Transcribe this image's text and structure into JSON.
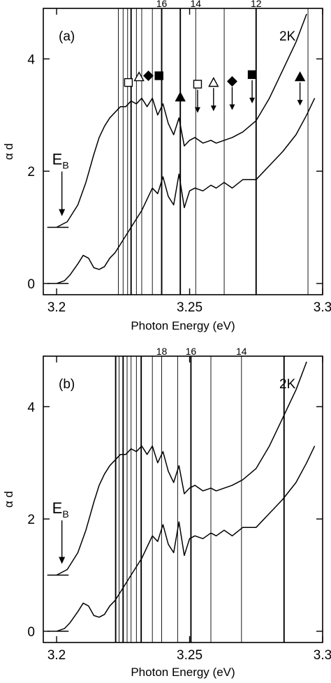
{
  "chart_data": [
    {
      "type": "line",
      "panel_label": "(a)",
      "temperature": "2K",
      "xlabel": "Photon Energy (eV)",
      "ylabel": "α d",
      "xlim": [
        3.195,
        3.3
      ],
      "ylim": [
        -0.2,
        4.9
      ],
      "x_ticks": [
        "3.2",
        "3.25",
        "3.3"
      ],
      "x_tick_values": [
        3.2,
        3.25,
        3.3
      ],
      "y_ticks": [
        "0",
        "2",
        "4"
      ],
      "y_tick_values": [
        0,
        2,
        4
      ],
      "eb_label": "E",
      "eb_subscript": "B",
      "eb_arrow_x": 3.202,
      "eb_arrow_from": 2.02,
      "eb_arrow_to": 1.2,
      "top_labels": [
        {
          "text": "16",
          "x": 3.2395
        },
        {
          "text": "14",
          "x": 3.2523
        },
        {
          "text": "12",
          "x": 3.275
        }
      ],
      "vertical_lines": [
        {
          "x": 3.2232,
          "weight": "thin"
        },
        {
          "x": 3.225,
          "weight": "thin"
        },
        {
          "x": 3.2267,
          "weight": "thin"
        },
        {
          "x": 3.228,
          "weight": "thick"
        },
        {
          "x": 3.23,
          "weight": "thin"
        },
        {
          "x": 3.232,
          "weight": "thin"
        },
        {
          "x": 3.236,
          "weight": "thin"
        },
        {
          "x": 3.2395,
          "weight": "thick"
        },
        {
          "x": 3.2465,
          "weight": "thick"
        },
        {
          "x": 3.2523,
          "weight": "thin"
        },
        {
          "x": 3.263,
          "weight": "thin"
        },
        {
          "x": 3.275,
          "weight": "thick"
        },
        {
          "x": 3.2945,
          "weight": "thin"
        }
      ],
      "markers": [
        {
          "shape": "square",
          "filled": false,
          "x": 3.227,
          "y": 3.58,
          "arrow": false
        },
        {
          "shape": "triangle",
          "filled": false,
          "x": 3.231,
          "y": 3.68,
          "arrow": false
        },
        {
          "shape": "diamond",
          "filled": true,
          "x": 3.2345,
          "y": 3.7,
          "arrow": false
        },
        {
          "shape": "square",
          "filled": true,
          "x": 3.2385,
          "y": 3.7,
          "arrow": false
        },
        {
          "shape": "triangle",
          "filled": true,
          "x": 3.2465,
          "y": 3.32,
          "arrow": false
        },
        {
          "shape": "square",
          "filled": false,
          "x": 3.253,
          "y": 3.55,
          "arrow": true
        },
        {
          "shape": "triangle",
          "filled": false,
          "x": 3.259,
          "y": 3.58,
          "arrow": true
        },
        {
          "shape": "diamond",
          "filled": true,
          "x": 3.266,
          "y": 3.6,
          "arrow": true
        },
        {
          "shape": "square",
          "filled": true,
          "x": 3.2735,
          "y": 3.72,
          "arrow": true
        },
        {
          "shape": "triangle",
          "filled": true,
          "x": 3.2915,
          "y": 3.68,
          "arrow": true
        }
      ],
      "series": [
        {
          "baseline": [
            [
              3.1965,
              1.0
            ],
            [
              3.2045,
              1.0
            ]
          ],
          "x": [
            3.2,
            3.204,
            3.208,
            3.211,
            3.214,
            3.216,
            3.218,
            3.22,
            3.222,
            3.224,
            3.226,
            3.228,
            3.23,
            3.232,
            3.234,
            3.236,
            3.238,
            3.24,
            3.242,
            3.244,
            3.246,
            3.248,
            3.25,
            3.252,
            3.255,
            3.258,
            3.26,
            3.263,
            3.266,
            3.27,
            3.275,
            3.28,
            3.285,
            3.29,
            3.294
          ],
          "y": [
            1.0,
            1.1,
            1.4,
            1.8,
            2.3,
            2.6,
            2.8,
            2.95,
            3.05,
            3.15,
            3.15,
            3.25,
            3.2,
            3.3,
            3.15,
            3.3,
            3.0,
            3.2,
            2.85,
            2.65,
            2.95,
            2.45,
            2.55,
            2.6,
            2.5,
            2.55,
            2.5,
            2.55,
            2.6,
            2.7,
            2.9,
            3.3,
            3.8,
            4.3,
            4.8
          ]
        },
        {
          "baseline": [
            [
              3.1965,
              0.0
            ],
            [
              3.2045,
              0.0
            ]
          ],
          "x": [
            3.2,
            3.203,
            3.205,
            3.208,
            3.21,
            3.212,
            3.214,
            3.216,
            3.218,
            3.22,
            3.222,
            3.224,
            3.226,
            3.228,
            3.23,
            3.232,
            3.234,
            3.236,
            3.238,
            3.24,
            3.242,
            3.244,
            3.246,
            3.248,
            3.25,
            3.252,
            3.255,
            3.258,
            3.26,
            3.263,
            3.266,
            3.27,
            3.275,
            3.28,
            3.285,
            3.29,
            3.294,
            3.297
          ],
          "y": [
            0.0,
            0.05,
            0.15,
            0.35,
            0.5,
            0.45,
            0.28,
            0.25,
            0.3,
            0.45,
            0.55,
            0.7,
            0.85,
            1.0,
            1.15,
            1.3,
            1.5,
            1.7,
            1.6,
            1.9,
            1.55,
            1.4,
            1.95,
            1.35,
            1.65,
            1.7,
            1.65,
            1.75,
            1.7,
            1.8,
            1.7,
            1.85,
            1.85,
            2.1,
            2.35,
            2.65,
            3.0,
            3.3
          ]
        }
      ]
    },
    {
      "type": "line",
      "panel_label": "(b)",
      "temperature": "2K",
      "xlabel": "Photon Energy (eV)",
      "ylabel": "α d",
      "xlim": [
        3.195,
        3.3
      ],
      "ylim": [
        -0.2,
        4.9
      ],
      "x_ticks": [
        "3.2",
        "3.25",
        "3.3"
      ],
      "x_tick_values": [
        3.2,
        3.25,
        3.3
      ],
      "y_ticks": [
        "0",
        "2",
        "4"
      ],
      "y_tick_values": [
        0,
        2,
        4
      ],
      "eb_label": "E",
      "eb_subscript": "B",
      "eb_arrow_x": 3.202,
      "eb_arrow_from": 2.0,
      "eb_arrow_to": 1.2,
      "top_labels": [
        {
          "text": "18",
          "x": 3.2395
        },
        {
          "text": "16",
          "x": 3.2505
        },
        {
          "text": "14",
          "x": 3.2695
        }
      ],
      "vertical_lines": [
        {
          "x": 3.2222,
          "weight": "thick"
        },
        {
          "x": 3.2235,
          "weight": "thin"
        },
        {
          "x": 3.225,
          "weight": "thick"
        },
        {
          "x": 3.2265,
          "weight": "thin"
        },
        {
          "x": 3.228,
          "weight": "thin"
        },
        {
          "x": 3.23,
          "weight": "thin"
        },
        {
          "x": 3.2318,
          "weight": "thick"
        },
        {
          "x": 3.236,
          "weight": "thin"
        },
        {
          "x": 3.2395,
          "weight": "thin"
        },
        {
          "x": 3.2455,
          "weight": "thin"
        },
        {
          "x": 3.2505,
          "weight": "thick"
        },
        {
          "x": 3.258,
          "weight": "thin"
        },
        {
          "x": 3.2695,
          "weight": "thin"
        },
        {
          "x": 3.2855,
          "weight": "thick"
        }
      ],
      "markers": [],
      "series": [
        {
          "baseline": [
            [
              3.1965,
              1.0
            ],
            [
              3.2045,
              1.0
            ]
          ],
          "x": [
            3.2,
            3.204,
            3.208,
            3.211,
            3.214,
            3.216,
            3.218,
            3.22,
            3.222,
            3.224,
            3.226,
            3.228,
            3.23,
            3.232,
            3.234,
            3.236,
            3.238,
            3.24,
            3.242,
            3.244,
            3.246,
            3.248,
            3.25,
            3.252,
            3.255,
            3.258,
            3.26,
            3.263,
            3.266,
            3.27,
            3.275,
            3.28,
            3.285,
            3.29,
            3.294
          ],
          "y": [
            1.0,
            1.1,
            1.4,
            1.8,
            2.3,
            2.6,
            2.8,
            2.95,
            3.05,
            3.15,
            3.15,
            3.25,
            3.2,
            3.3,
            3.15,
            3.3,
            3.0,
            3.2,
            2.85,
            2.65,
            2.95,
            2.45,
            2.55,
            2.6,
            2.5,
            2.55,
            2.5,
            2.55,
            2.6,
            2.7,
            2.9,
            3.3,
            3.8,
            4.3,
            4.8
          ]
        },
        {
          "baseline": [
            [
              3.1965,
              0.0
            ],
            [
              3.2045,
              0.0
            ]
          ],
          "x": [
            3.2,
            3.203,
            3.205,
            3.208,
            3.21,
            3.212,
            3.214,
            3.216,
            3.218,
            3.22,
            3.222,
            3.224,
            3.226,
            3.228,
            3.23,
            3.232,
            3.234,
            3.236,
            3.238,
            3.24,
            3.242,
            3.244,
            3.246,
            3.248,
            3.25,
            3.252,
            3.255,
            3.258,
            3.26,
            3.263,
            3.266,
            3.27,
            3.275,
            3.28,
            3.285,
            3.29,
            3.294,
            3.297
          ],
          "y": [
            0.0,
            0.05,
            0.15,
            0.35,
            0.5,
            0.45,
            0.28,
            0.25,
            0.3,
            0.45,
            0.55,
            0.7,
            0.85,
            1.0,
            1.15,
            1.3,
            1.5,
            1.7,
            1.6,
            1.9,
            1.55,
            1.4,
            1.95,
            1.35,
            1.65,
            1.7,
            1.65,
            1.75,
            1.7,
            1.8,
            1.7,
            1.85,
            1.85,
            2.1,
            2.35,
            2.65,
            3.0,
            3.3
          ]
        }
      ]
    }
  ]
}
